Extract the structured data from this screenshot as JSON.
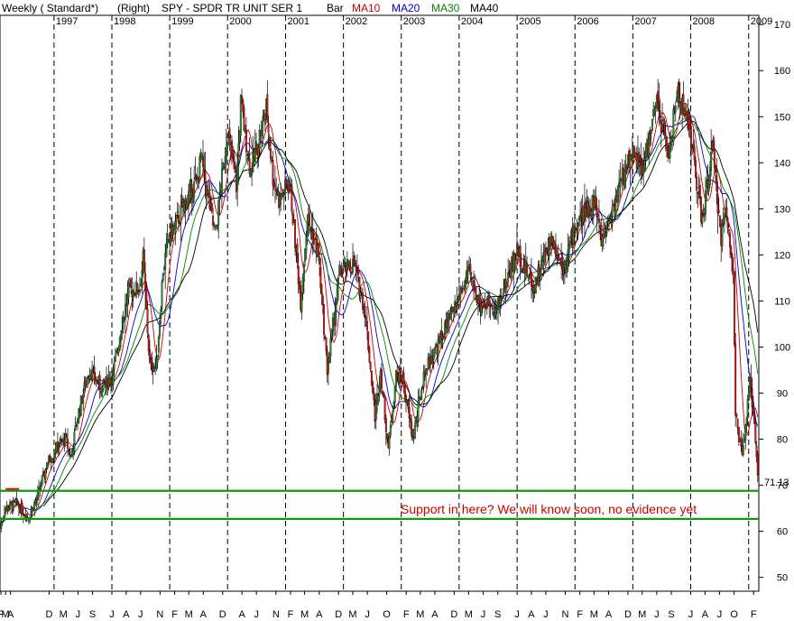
{
  "header": {
    "period": "Weekly ( Standard*)",
    "scale": "(Right)",
    "symbol": "SPY - SPDR TR UNIT SER 1",
    "bar": "Bar",
    "ma10": "MA10",
    "ma20": "MA20",
    "ma30": "MA30",
    "ma40": "MA40"
  },
  "colors": {
    "up_bar": "#2e8b2e",
    "down_bar": "#dd1111",
    "ma10": "#cc0000",
    "ma20": "#0000cc",
    "ma30": "#008800",
    "ma40": "#000000",
    "support": "#119911"
  },
  "chart_data": {
    "type": "bar",
    "subtype": "weekly OHLC price bars with moving averages",
    "ylim": [
      47,
      172
    ],
    "y_ticks": [
      "170",
      "160",
      "150",
      "140",
      "130",
      "120",
      "110",
      "100",
      "90",
      "80",
      "70",
      "60",
      "50"
    ],
    "last_price_label": "71.13",
    "last_price": 71.13,
    "grid": "vertical dashed year separators",
    "years": [
      "1997",
      "1998",
      "1999",
      "2000",
      "2001",
      "2002",
      "2003",
      "2004",
      "2005",
      "2006",
      "2007",
      "2008",
      "2009"
    ],
    "year_start_dates": [
      "1997-01-01",
      "1998-01-01",
      "1999-01-01",
      "2000-01-01",
      "2001-01-01",
      "2002-01-01",
      "2003-01-01",
      "2004-01-01",
      "2005-01-01",
      "2006-01-01",
      "2007-01-01",
      "2008-01-01",
      "2009-01-01"
    ],
    "month_ticks": [
      {
        "label": "F",
        "date": "1996-02-01"
      },
      {
        "label": "M",
        "date": "1996-03-01"
      },
      {
        "label": "A",
        "date": "1996-04-01"
      },
      {
        "label": "D",
        "date": "1996-12-01"
      },
      {
        "label": "M",
        "date": "1997-03-01"
      },
      {
        "label": "J",
        "date": "1997-06-01"
      },
      {
        "label": "S",
        "date": "1997-09-01"
      },
      {
        "label": "J",
        "date": "1998-01-01"
      },
      {
        "label": "A",
        "date": "1998-04-01"
      },
      {
        "label": "J",
        "date": "1998-07-01"
      },
      {
        "label": "N",
        "date": "1998-11-01"
      },
      {
        "label": "F",
        "date": "1999-02-01"
      },
      {
        "label": "M",
        "date": "1999-05-01"
      },
      {
        "label": "A",
        "date": "1999-08-01"
      },
      {
        "label": "D",
        "date": "1999-12-01"
      },
      {
        "label": "A",
        "date": "2000-04-01"
      },
      {
        "label": "J",
        "date": "2000-07-01"
      },
      {
        "label": "N",
        "date": "2000-11-01"
      },
      {
        "label": "F",
        "date": "2001-02-01"
      },
      {
        "label": "M",
        "date": "2001-05-01"
      },
      {
        "label": "A",
        "date": "2001-08-01"
      },
      {
        "label": "D",
        "date": "2001-12-01"
      },
      {
        "label": "M",
        "date": "2002-03-01"
      },
      {
        "label": "J",
        "date": "2002-06-01"
      },
      {
        "label": "O",
        "date": "2002-10-01"
      },
      {
        "label": "F",
        "date": "2003-02-01"
      },
      {
        "label": "M",
        "date": "2003-05-01"
      },
      {
        "label": "A",
        "date": "2003-08-01"
      },
      {
        "label": "D",
        "date": "2003-12-01"
      },
      {
        "label": "M",
        "date": "2004-03-01"
      },
      {
        "label": "J",
        "date": "2004-06-01"
      },
      {
        "label": "S",
        "date": "2004-09-01"
      },
      {
        "label": "J",
        "date": "2005-01-01"
      },
      {
        "label": "A",
        "date": "2005-04-01"
      },
      {
        "label": "J",
        "date": "2005-07-01"
      },
      {
        "label": "N",
        "date": "2005-11-01"
      },
      {
        "label": "F",
        "date": "2006-02-01"
      },
      {
        "label": "M",
        "date": "2006-05-01"
      },
      {
        "label": "A",
        "date": "2006-08-01"
      },
      {
        "label": "D",
        "date": "2006-12-01"
      },
      {
        "label": "M",
        "date": "2007-03-01"
      },
      {
        "label": "J",
        "date": "2007-06-01"
      },
      {
        "label": "S",
        "date": "2007-09-01"
      },
      {
        "label": "J",
        "date": "2008-01-01"
      },
      {
        "label": "A",
        "date": "2008-04-01"
      },
      {
        "label": "J",
        "date": "2008-07-01"
      },
      {
        "label": "O",
        "date": "2008-10-01"
      },
      {
        "label": "F",
        "date": "2009-02-01"
      }
    ],
    "price_path": {
      "description": "approximate weekly closing price path (date, price)",
      "points": [
        [
          "1996-01-26",
          61
        ],
        [
          "1996-03-01",
          65
        ],
        [
          "1996-05-10",
          66
        ],
        [
          "1996-07-19",
          63
        ],
        [
          "1996-09-13",
          67
        ],
        [
          "1996-11-22",
          75
        ],
        [
          "1997-01-17",
          78
        ],
        [
          "1997-03-14",
          80
        ],
        [
          "1997-04-18",
          76
        ],
        [
          "1997-05-30",
          85
        ],
        [
          "1997-08-08",
          95
        ],
        [
          "1997-10-31",
          91
        ],
        [
          "1998-01-09",
          94
        ],
        [
          "1998-02-27",
          104
        ],
        [
          "1998-04-17",
          112
        ],
        [
          "1998-06-26",
          113
        ],
        [
          "1998-07-17",
          119
        ],
        [
          "1998-08-28",
          96
        ],
        [
          "1998-10-09",
          96
        ],
        [
          "1998-11-20",
          117
        ],
        [
          "1998-12-31",
          124
        ],
        [
          "1999-02-26",
          128
        ],
        [
          "1999-05-14",
          134
        ],
        [
          "1999-06-25",
          136
        ],
        [
          "1999-07-16",
          141
        ],
        [
          "1999-10-15",
          124
        ],
        [
          "1999-12-31",
          147
        ],
        [
          "2000-02-25",
          135
        ],
        [
          "2000-03-24",
          153
        ],
        [
          "2000-05-26",
          138
        ],
        [
          "2000-09-01",
          152
        ],
        [
          "2000-10-13",
          137
        ],
        [
          "2000-11-24",
          132
        ],
        [
          "2001-01-26",
          136
        ],
        [
          "2001-04-06",
          110
        ],
        [
          "2001-05-18",
          128
        ],
        [
          "2001-07-27",
          120
        ],
        [
          "2001-09-21",
          95
        ],
        [
          "2001-12-07",
          116
        ],
        [
          "2002-03-08",
          118
        ],
        [
          "2002-05-17",
          108
        ],
        [
          "2002-07-19",
          85
        ],
        [
          "2002-08-23",
          95
        ],
        [
          "2002-10-11",
          78
        ],
        [
          "2002-11-29",
          94
        ],
        [
          "2003-01-10",
          93
        ],
        [
          "2003-03-14",
          80
        ],
        [
          "2003-05-30",
          95
        ],
        [
          "2003-08-29",
          101
        ],
        [
          "2003-12-31",
          111
        ],
        [
          "2004-03-05",
          116
        ],
        [
          "2004-05-14",
          109
        ],
        [
          "2004-07-30",
          110
        ],
        [
          "2004-08-13",
          107
        ],
        [
          "2004-12-31",
          121
        ],
        [
          "2005-04-15",
          113
        ],
        [
          "2005-08-05",
          124
        ],
        [
          "2005-10-21",
          117
        ],
        [
          "2005-12-30",
          126
        ],
        [
          "2006-05-05",
          132
        ],
        [
          "2006-06-16",
          123
        ],
        [
          "2006-12-29",
          143
        ],
        [
          "2007-03-02",
          138
        ],
        [
          "2007-06-01",
          153
        ],
        [
          "2007-08-17",
          142
        ],
        [
          "2007-10-12",
          156
        ],
        [
          "2007-12-28",
          147
        ],
        [
          "2008-03-14",
          127
        ],
        [
          "2008-05-16",
          143
        ],
        [
          "2008-07-11",
          124
        ],
        [
          "2008-08-15",
          130
        ],
        [
          "2008-09-26",
          116
        ],
        [
          "2008-10-10",
          85
        ],
        [
          "2008-11-21",
          76
        ],
        [
          "2009-01-09",
          92
        ],
        [
          "2009-02-06",
          84
        ],
        [
          "2009-02-27",
          73
        ]
      ]
    },
    "moving_averages": [
      {
        "name": "MA10",
        "weeks": 10
      },
      {
        "name": "MA20",
        "weeks": 20
      },
      {
        "name": "MA30",
        "weeks": 30
      },
      {
        "name": "MA40",
        "weeks": 40
      }
    ],
    "support": {
      "upper": 68.8,
      "lower": 62.7,
      "annotation": "Support in here? We will know soon, no evidence yet"
    },
    "marker": {
      "from": "1996-03-01",
      "to": "1996-05-25",
      "value": 68.8
    }
  }
}
